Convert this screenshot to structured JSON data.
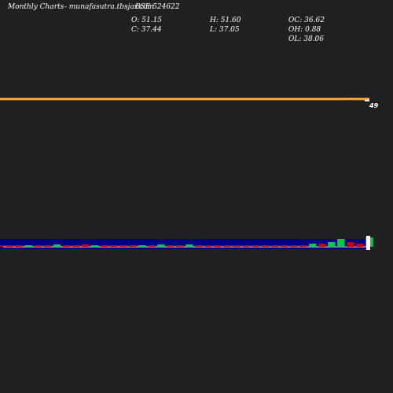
{
  "header": {
    "title": "Monthly Charts",
    "site": "- munafasutra.tbsjar.com",
    "symbol": "BSE 524622"
  },
  "ohlc": {
    "open": "O: 51.15",
    "high": "H: 51.60",
    "oc": "OC: 36.62",
    "close": "C: 37.44",
    "low": "L: 37.05",
    "oh": "OH: 0.88",
    "ol": "OL: 38.06"
  },
  "price_tag": "49",
  "colors": {
    "background": "#202020",
    "price_line": "#ff8c00",
    "volume_band": "#000080",
    "up": "#00cc44",
    "down": "#cc0000"
  },
  "chart_data": {
    "type": "line",
    "x": [
      1,
      2,
      3,
      4,
      5,
      6,
      7,
      8,
      9,
      10,
      11,
      12,
      13,
      14,
      15,
      16,
      17,
      18,
      19,
      20,
      21,
      22,
      23,
      24,
      25,
      26,
      27,
      28,
      29,
      30,
      31,
      32,
      33,
      34,
      35,
      36,
      37,
      38,
      39,
      40
    ],
    "series": [
      {
        "values": [
          48,
          48,
          47,
          46,
          46,
          46,
          46,
          46,
          46,
          46,
          46,
          46,
          46,
          46,
          46,
          46,
          46,
          46,
          46,
          46,
          46,
          46,
          46,
          46,
          46,
          46,
          46,
          46,
          46,
          46,
          46,
          46,
          46,
          46,
          46,
          46,
          47,
          50,
          48,
          49
        ]
      }
    ],
    "volume": [
      2,
      2,
      2,
      2,
      2,
      2,
      3,
      2,
      2,
      3,
      2,
      2,
      2,
      2,
      2,
      2,
      2,
      3,
      2,
      2,
      3,
      2,
      2,
      2,
      2,
      2,
      2,
      2,
      2,
      2,
      2,
      2,
      2,
      4,
      4,
      6,
      10,
      6,
      4,
      12
    ],
    "volume_up": [
      false,
      false,
      false,
      true,
      false,
      false,
      true,
      false,
      false,
      false,
      true,
      false,
      false,
      false,
      false,
      true,
      false,
      true,
      false,
      false,
      true,
      false,
      false,
      false,
      false,
      false,
      false,
      false,
      false,
      false,
      false,
      false,
      false,
      true,
      false,
      true,
      true,
      false,
      false,
      true
    ]
  }
}
